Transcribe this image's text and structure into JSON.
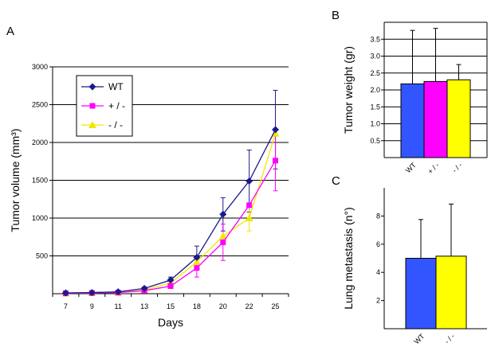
{
  "chart_data": [
    {
      "panel": "A",
      "type": "line",
      "xlabel": "Days",
      "ylabel": "Tumor volume (mm³)",
      "categories": [
        "7",
        "9",
        "11",
        "13",
        "15",
        "18",
        "20",
        "22",
        "25"
      ],
      "ylim": [
        0,
        3000
      ],
      "yticks": [
        "500",
        "1000",
        "1500",
        "2000",
        "2500",
        "3000"
      ],
      "grid": true,
      "legend_position": "top-left",
      "series": [
        {
          "name": "WT",
          "color": "#1a1a8c",
          "marker": "diamond",
          "values": [
            10,
            15,
            25,
            70,
            180,
            480,
            1050,
            1490,
            2170
          ],
          "errors": [
            0,
            0,
            0,
            20,
            40,
            150,
            220,
            410,
            520
          ]
        },
        {
          "name": "+ / -",
          "color": "#ff00ff",
          "marker": "square",
          "values": [
            5,
            10,
            15,
            40,
            100,
            340,
            680,
            1170,
            1760
          ],
          "errors": [
            0,
            0,
            0,
            10,
            30,
            120,
            240,
            0,
            400
          ]
        },
        {
          "name": "- / -",
          "color": "#f2e600",
          "marker": "triangle",
          "values": [
            5,
            10,
            15,
            50,
            140,
            420,
            760,
            1000,
            2120
          ],
          "errors": [
            0,
            0,
            0,
            10,
            30,
            0,
            0,
            170,
            0
          ]
        }
      ]
    },
    {
      "panel": "B",
      "type": "bar",
      "ylabel": "Tumor weight (gr)",
      "categories": [
        "WT",
        "+ / -",
        "- / -"
      ],
      "colors": [
        "#3355ff",
        "#ff00ff",
        "#ffff00"
      ],
      "values": [
        2.18,
        2.25,
        2.3
      ],
      "errors": [
        1.58,
        1.57,
        0.45
      ],
      "ylim": [
        0,
        4.0
      ],
      "yticks": [
        "0.5",
        "1.0",
        "1.5",
        "2.0",
        "2.5",
        "3.0",
        "3.5"
      ],
      "grid": true
    },
    {
      "panel": "C",
      "type": "bar",
      "ylabel": "Lung metastasis (n°)",
      "categories": [
        "WT",
        "- / -"
      ],
      "colors": [
        "#3355ff",
        "#ffff00"
      ],
      "values": [
        5.0,
        5.15
      ],
      "errors": [
        2.75,
        3.7
      ],
      "ylim": [
        0,
        10
      ],
      "yticks": [
        "2",
        "4",
        "6",
        "8"
      ],
      "grid": false
    }
  ]
}
